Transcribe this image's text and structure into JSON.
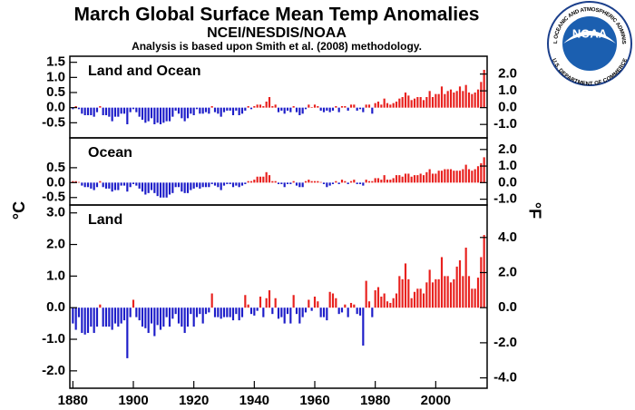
{
  "title": "March Global Surface Mean Temp Anomalies",
  "subtitle": "NCEI/NESDIS/NOAA",
  "note": "Analysis is based upon Smith et al. (2008) methodology.",
  "logo": {
    "name": "NOAA",
    "top_text": "NATIONAL OCEANIC AND ATMOSPHERIC ADMINISTRATION",
    "bottom_text": "U.S. DEPARTMENT OF COMMERCE"
  },
  "chart_data": {
    "type": "bar",
    "ylabel": "°C",
    "y2label": "°F",
    "positive_color": "#e8211e",
    "negative_color": "#1d1dc9",
    "xlim": [
      1879,
      2017
    ],
    "xticks": [
      1880,
      1900,
      1920,
      1940,
      1960,
      1980,
      2000
    ],
    "x": [
      1880,
      1881,
      1882,
      1883,
      1884,
      1885,
      1886,
      1887,
      1888,
      1889,
      1890,
      1891,
      1892,
      1893,
      1894,
      1895,
      1896,
      1897,
      1898,
      1899,
      1900,
      1901,
      1902,
      1903,
      1904,
      1905,
      1906,
      1907,
      1908,
      1909,
      1910,
      1911,
      1912,
      1913,
      1914,
      1915,
      1916,
      1917,
      1918,
      1919,
      1920,
      1921,
      1922,
      1923,
      1924,
      1925,
      1926,
      1927,
      1928,
      1929,
      1930,
      1931,
      1932,
      1933,
      1934,
      1935,
      1936,
      1937,
      1938,
      1939,
      1940,
      1941,
      1942,
      1943,
      1944,
      1945,
      1946,
      1947,
      1948,
      1949,
      1950,
      1951,
      1952,
      1953,
      1954,
      1955,
      1956,
      1957,
      1958,
      1959,
      1960,
      1961,
      1962,
      1963,
      1964,
      1965,
      1966,
      1967,
      1968,
      1969,
      1970,
      1971,
      1972,
      1973,
      1974,
      1975,
      1976,
      1977,
      1978,
      1979,
      1980,
      1981,
      1982,
      1983,
      1984,
      1985,
      1986,
      1987,
      1988,
      1989,
      1990,
      1991,
      1992,
      1993,
      1994,
      1995,
      1996,
      1997,
      1998,
      1999,
      2000,
      2001,
      2002,
      2003,
      2004,
      2005,
      2006,
      2007,
      2008,
      2009,
      2010,
      2011,
      2012,
      2013,
      2014,
      2015,
      2016
    ],
    "series": [
      {
        "name": "Land and Ocean",
        "ylim": [
          -1.0,
          1.7
        ],
        "y2lim": [
          -1.8,
          3.06
        ],
        "yticks": [
          {
            "value": -0.5,
            "label": "-0.5"
          },
          {
            "value": 0,
            "label": "0.0"
          },
          0.5,
          {
            "value": 1,
            "label": "1.0"
          },
          1.5
        ],
        "y2ticks": [
          {
            "value": -1,
            "label": "-1.0"
          },
          {
            "value": 0,
            "label": "0.0"
          },
          {
            "value": 1,
            "label": "1.0"
          },
          {
            "value": 2,
            "label": "2.0"
          }
        ],
        "values": [
          -0.05,
          0.05,
          -0.05,
          -0.2,
          -0.25,
          -0.25,
          -0.25,
          -0.3,
          -0.15,
          0.05,
          -0.25,
          -0.25,
          -0.3,
          -0.45,
          -0.3,
          -0.3,
          -0.2,
          -0.2,
          -0.55,
          -0.15,
          -0.05,
          -0.15,
          -0.3,
          -0.4,
          -0.5,
          -0.45,
          -0.35,
          -0.55,
          -0.5,
          -0.55,
          -0.5,
          -0.45,
          -0.45,
          -0.3,
          -0.1,
          -0.2,
          -0.35,
          -0.45,
          -0.35,
          -0.2,
          -0.25,
          -0.05,
          -0.2,
          -0.2,
          -0.15,
          -0.2,
          0.05,
          -0.15,
          -0.2,
          -0.3,
          -0.15,
          -0.1,
          -0.1,
          -0.25,
          -0.1,
          -0.25,
          -0.2,
          -0.1,
          0.05,
          -0.05,
          0.05,
          0.1,
          0.1,
          0.05,
          0.2,
          0.35,
          0.05,
          0.1,
          -0.15,
          -0.1,
          -0.2,
          -0.1,
          -0.15,
          0.05,
          -0.15,
          -0.25,
          -0.2,
          -0.05,
          0.1,
          0.02,
          0.1,
          0.05,
          -0.1,
          -0.15,
          -0.1,
          -0.15,
          -0.1,
          0.05,
          -0.15,
          0.05,
          0.05,
          -0.1,
          0.1,
          0.1,
          -0.1,
          -0.05,
          -0.15,
          0.1,
          0.1,
          -0.2,
          0.15,
          0.2,
          0.1,
          0.3,
          0.15,
          0.1,
          0.15,
          0.2,
          0.3,
          0.35,
          0.5,
          0.4,
          0.25,
          0.3,
          0.35,
          0.35,
          0.25,
          0.35,
          0.55,
          0.35,
          0.45,
          0.45,
          0.7,
          0.45,
          0.55,
          0.6,
          0.5,
          0.55,
          0.7,
          0.55,
          0.75,
          0.5,
          0.45,
          0.5,
          0.6,
          0.85,
          1.25
        ]
      },
      {
        "name": "Ocean",
        "ylim": [
          -0.75,
          1.5
        ],
        "y2lim": [
          -1.35,
          2.7
        ],
        "yticks": [
          {
            "value": -0.5,
            "label": "-0.5"
          },
          {
            "value": 0,
            "label": "0.0"
          },
          0.5
        ],
        "y2ticks": [
          {
            "value": -1,
            "label": "-1.0"
          },
          {
            "value": 0,
            "label": "0.0"
          },
          {
            "value": 1,
            "label": "1.0"
          },
          {
            "value": 2,
            "label": "2.0"
          }
        ],
        "values": [
          0.05,
          0.05,
          0.02,
          -0.1,
          -0.15,
          -0.15,
          -0.2,
          -0.25,
          -0.15,
          0.05,
          -0.15,
          -0.2,
          -0.2,
          -0.3,
          -0.25,
          -0.25,
          -0.1,
          -0.1,
          -0.3,
          -0.15,
          -0.05,
          -0.1,
          -0.2,
          -0.3,
          -0.4,
          -0.35,
          -0.25,
          -0.35,
          -0.45,
          -0.5,
          -0.5,
          -0.5,
          -0.4,
          -0.35,
          -0.15,
          -0.15,
          -0.3,
          -0.35,
          -0.35,
          -0.25,
          -0.2,
          -0.15,
          -0.2,
          -0.15,
          -0.15,
          -0.15,
          -0.05,
          -0.1,
          -0.15,
          -0.25,
          -0.1,
          -0.05,
          -0.05,
          -0.15,
          -0.1,
          -0.15,
          -0.1,
          -0.05,
          0.05,
          0.05,
          0.1,
          0.2,
          0.2,
          0.2,
          0.35,
          0.25,
          0.05,
          0.05,
          -0.05,
          -0.05,
          -0.15,
          -0.05,
          -0.05,
          0.05,
          -0.1,
          -0.15,
          -0.15,
          0.05,
          0.1,
          0.05,
          0.05,
          0.05,
          0.02,
          -0.05,
          -0.15,
          -0.1,
          -0.05,
          0.05,
          -0.05,
          0.1,
          0.05,
          -0.05,
          0.05,
          0.1,
          -0.05,
          -0.05,
          -0.1,
          0.1,
          0.05,
          0.05,
          0.15,
          0.15,
          0.1,
          0.25,
          0.1,
          0.1,
          0.15,
          0.25,
          0.25,
          0.2,
          0.3,
          0.3,
          0.2,
          0.25,
          0.25,
          0.3,
          0.25,
          0.35,
          0.45,
          0.3,
          0.3,
          0.4,
          0.4,
          0.45,
          0.45,
          0.45,
          0.4,
          0.4,
          0.4,
          0.45,
          0.6,
          0.45,
          0.4,
          0.45,
          0.55,
          0.65,
          0.85
        ]
      },
      {
        "name": "Land",
        "ylim": [
          -2.55,
          3.25
        ],
        "y2lim": [
          -4.59,
          5.85
        ],
        "yticks": [
          {
            "value": -2,
            "label": "-2.0"
          },
          {
            "value": -1,
            "label": "-1.0"
          },
          {
            "value": 0,
            "label": "0.0"
          },
          {
            "value": 1,
            "label": "1.0"
          },
          {
            "value": 2,
            "label": "2.0"
          },
          {
            "value": 3,
            "label": "3.0"
          }
        ],
        "y2ticks": [
          {
            "value": -4,
            "label": "-4.0"
          },
          {
            "value": -2,
            "label": "-2.0"
          },
          {
            "value": 0,
            "label": "0.0"
          },
          {
            "value": 2,
            "label": "2.0"
          },
          {
            "value": 4,
            "label": "4.0"
          }
        ],
        "values": [
          -0.5,
          -0.7,
          -0.3,
          -0.8,
          -0.85,
          -0.8,
          -0.6,
          -0.8,
          -0.6,
          0.1,
          -0.6,
          -0.6,
          -0.6,
          -0.7,
          -0.5,
          -0.6,
          -0.5,
          -0.4,
          -1.6,
          -0.3,
          0.25,
          -0.3,
          -0.4,
          -0.6,
          -0.65,
          -0.8,
          -0.5,
          -0.9,
          -0.55,
          -0.7,
          -0.6,
          -0.3,
          -0.6,
          -0.35,
          -0.2,
          -0.5,
          -0.6,
          -0.8,
          -0.6,
          -0.2,
          -0.6,
          -0.3,
          -0.2,
          -0.5,
          -0.2,
          -0.15,
          0.45,
          -0.3,
          -0.3,
          -0.35,
          -0.3,
          -0.3,
          -0.3,
          -0.4,
          -0.2,
          -0.4,
          -0.3,
          0.4,
          0.1,
          -0.2,
          -0.25,
          -0.1,
          0.35,
          -0.3,
          0.3,
          0.55,
          -0.2,
          0.3,
          -0.35,
          -0.3,
          -0.5,
          -0.2,
          -0.5,
          0.4,
          -0.2,
          -0.5,
          -0.3,
          -0.15,
          0.25,
          -0.1,
          0.35,
          0.2,
          -0.3,
          -0.3,
          -0.4,
          0.5,
          0.45,
          0.3,
          -0.2,
          -0.15,
          0.1,
          -0.3,
          0.15,
          0.1,
          -0.2,
          -0.25,
          -1.2,
          0.85,
          0.2,
          -0.3,
          0.55,
          0.65,
          0.35,
          0.45,
          0.2,
          0.15,
          0.3,
          0.45,
          1.0,
          0.9,
          1.4,
          0.9,
          0.3,
          0.5,
          0.6,
          0.6,
          0.45,
          0.8,
          1.2,
          0.8,
          0.9,
          0.9,
          1.6,
          1.0,
          1.0,
          0.8,
          0.9,
          1.3,
          1.5,
          1.0,
          1.9,
          1.0,
          0.6,
          0.6,
          0.95,
          1.6,
          2.3
        ]
      }
    ]
  }
}
